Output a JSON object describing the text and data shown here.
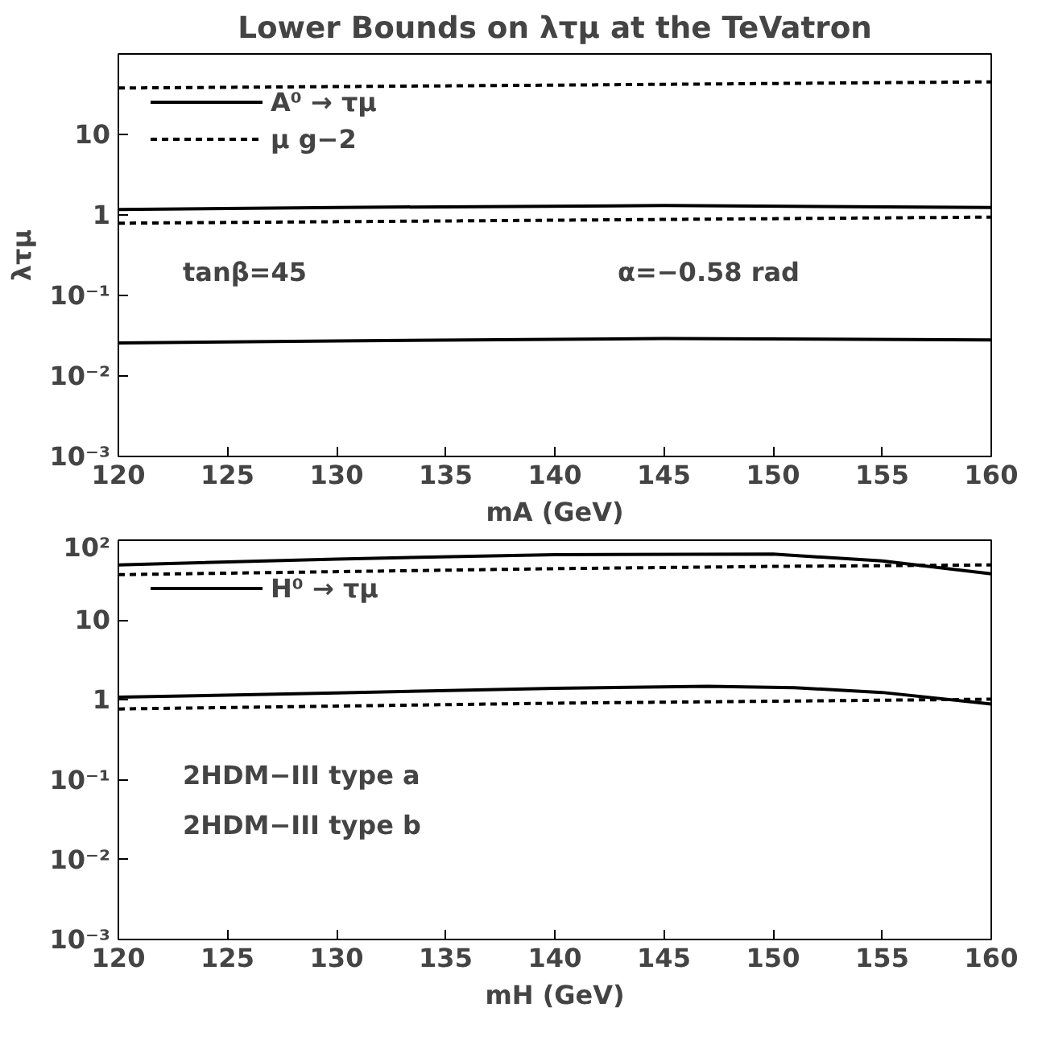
{
  "chart_data": [
    {
      "type": "line",
      "title": "Lower Bounds on λτμ at the TeVatron",
      "xlabel": "mA (GeV)",
      "ylabel": "λτμ",
      "log": "y",
      "legend": "top left",
      "grid": false,
      "xlim": [
        120,
        160
      ],
      "xticks": [
        120,
        125,
        130,
        135,
        140,
        145,
        150,
        155,
        160
      ],
      "ylim": [
        0.001,
        100
      ],
      "yticks": [
        {
          "value": 0.001,
          "label": "10⁻³"
        },
        {
          "value": 0.01,
          "label": "10⁻²"
        },
        {
          "value": 0.1,
          "label": "10⁻¹"
        },
        1,
        10,
        {
          "value": 100,
          "label": null
        }
      ],
      "annotations": [
        "tanβ=45",
        "α=−0.58 rad"
      ],
      "series": [
        {
          "name": "A⁰ → τμ",
          "color": "#000000",
          "line_style": "solid",
          "x": [
            120,
            130,
            145,
            160
          ],
          "values": [
            1.17,
            1.24,
            1.31,
            1.24
          ]
        },
        {
          "name": "μ g−2",
          "color": "#000000",
          "line_style": "dashed",
          "x": [
            120,
            140,
            160
          ],
          "values": [
            37.7,
            41,
            45
          ]
        },
        {
          "color": "#000000",
          "line_style": "dashed",
          "x": [
            120,
            140,
            160
          ],
          "values": [
            0.79,
            0.86,
            0.94
          ]
        },
        {
          "color": "#000000",
          "line_style": "solid",
          "x": [
            120,
            130,
            145,
            160
          ],
          "values": [
            0.0257,
            0.0272,
            0.0292,
            0.028
          ]
        }
      ]
    },
    {
      "type": "line",
      "xlabel": "mH (GeV)",
      "log": "y",
      "legend": "top left",
      "grid": false,
      "xlim": [
        120,
        160
      ],
      "xticks": [
        120,
        125,
        130,
        135,
        140,
        145,
        150,
        155,
        160
      ],
      "ylim": [
        0.001,
        100
      ],
      "yticks": [
        {
          "value": 0.001,
          "label": "10⁻³"
        },
        {
          "value": 0.01,
          "label": "10⁻²"
        },
        {
          "value": 0.1,
          "label": "10⁻¹"
        },
        1,
        10,
        {
          "value": 100,
          "label": "10²"
        }
      ],
      "annotations": [
        "2HDM−III type a",
        "2HDM−III type b"
      ],
      "series": [
        {
          "name": "H⁰ → τμ",
          "color": "#000000",
          "line_style": "solid",
          "x": [
            120,
            130,
            140,
            150,
            155,
            160
          ],
          "values": [
            49,
            58,
            66,
            67,
            55,
            38
          ]
        },
        {
          "color": "#000000",
          "line_style": "dashed",
          "x": [
            120,
            140,
            150,
            160
          ],
          "values": [
            37,
            44,
            47,
            49
          ]
        },
        {
          "color": "#000000",
          "line_style": "solid",
          "x": [
            120,
            130,
            140,
            147,
            151,
            155,
            160
          ],
          "values": [
            1.08,
            1.22,
            1.4,
            1.48,
            1.42,
            1.24,
            0.89
          ]
        },
        {
          "color": "#000000",
          "line_style": "dashed",
          "x": [
            120,
            140,
            160
          ],
          "values": [
            0.77,
            0.91,
            1.02
          ]
        }
      ]
    }
  ]
}
